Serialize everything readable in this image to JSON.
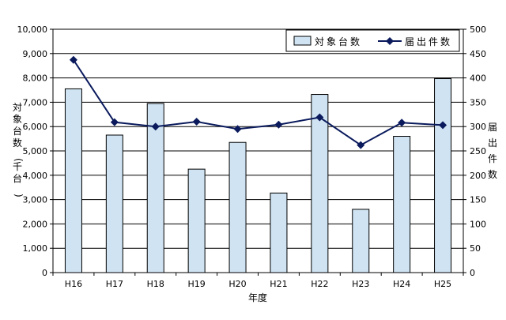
{
  "chart_data": {
    "type": "bar+line",
    "categories": [
      "H16",
      "H17",
      "H18",
      "H19",
      "H20",
      "H21",
      "H22",
      "H23",
      "H24",
      "H25"
    ],
    "series": [
      {
        "name": "対象台数",
        "kind": "bar",
        "axis": "left",
        "color": "#cfe3f2",
        "values": [
          7550,
          5650,
          6950,
          4250,
          5350,
          3270,
          7320,
          2600,
          5600,
          7970
        ]
      },
      {
        "name": "届出件数",
        "kind": "line",
        "axis": "right",
        "color": "#0a1a5c",
        "values": [
          437,
          309,
          300,
          310,
          295,
          304,
          319,
          262,
          308,
          303
        ]
      }
    ],
    "xlabel": "年度",
    "ylabel_left": "対象台数(千台)",
    "ylabel_right": "届出件数",
    "ylim_left": [
      0,
      10000
    ],
    "ylim_right": [
      0,
      500
    ],
    "yticks_left": [
      "0",
      "1,000",
      "2,000",
      "3,000",
      "4,000",
      "5,000",
      "6,000",
      "7,000",
      "8,000",
      "9,000",
      "10,000"
    ],
    "yticks_right": [
      "0",
      "50",
      "100",
      "150",
      "200",
      "250",
      "300",
      "350",
      "400",
      "450",
      "500"
    ],
    "grid": true,
    "legend_position": "top-right"
  }
}
